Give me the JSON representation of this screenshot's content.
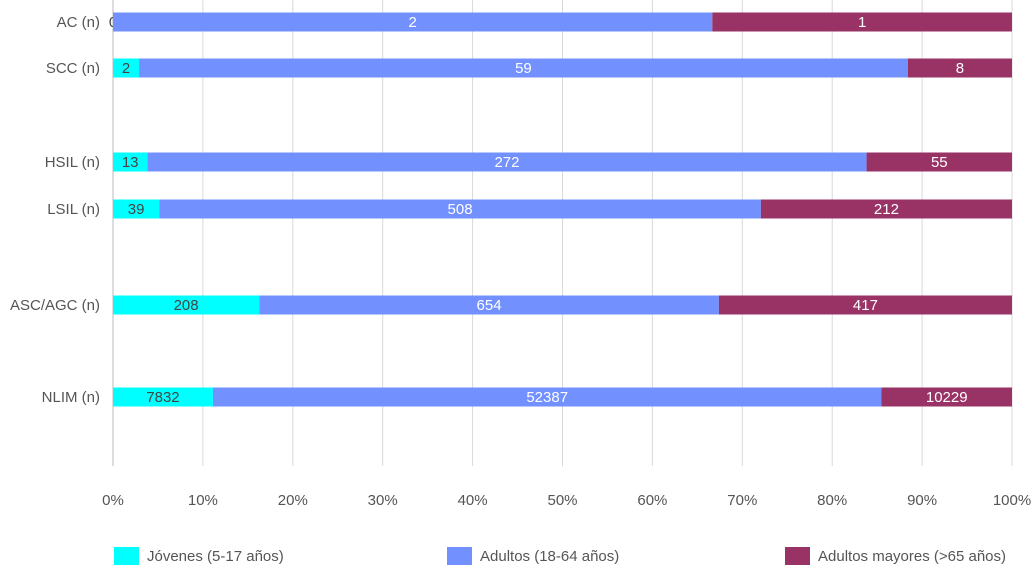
{
  "chart_data": {
    "type": "bar",
    "orientation": "horizontal",
    "stacked": "percent",
    "categories": [
      "AC (n)",
      "SCC (n)",
      "HSIL (n)",
      "LSIL (n)",
      "ASC/AGC (n)",
      "NLIM (n)"
    ],
    "series": [
      {
        "name": "Jóvenes (5-17 años)",
        "color": "#00FFFF",
        "label_color": "#444444",
        "values": [
          0,
          2,
          13,
          39,
          208,
          7832
        ]
      },
      {
        "name": "Adultos (18-64 años)",
        "color": "#7390FF",
        "label_color": "#FFFFFF",
        "values": [
          2,
          59,
          272,
          508,
          654,
          52387
        ]
      },
      {
        "name": "Adultos mayores (>65 años)",
        "color": "#993366",
        "label_color": "#FFFFFF",
        "values": [
          1,
          8,
          55,
          212,
          417,
          10229
        ]
      }
    ],
    "xticks": [
      "0%",
      "10%",
      "20%",
      "30%",
      "40%",
      "50%",
      "60%",
      "70%",
      "80%",
      "90%",
      "100%"
    ],
    "xlim": [
      0,
      100
    ],
    "grid": true,
    "legend": "bottom",
    "title": "",
    "xlabel": "",
    "ylabel": ""
  }
}
